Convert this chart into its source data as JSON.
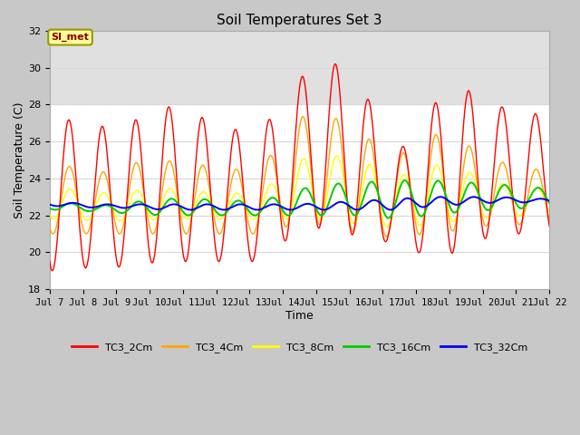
{
  "title": "Soil Temperatures Set 3",
  "xlabel": "Time",
  "ylabel": "Soil Temperature (C)",
  "ylim": [
    18,
    32
  ],
  "xlim_days": [
    7,
    22
  ],
  "annotation_text": "SI_met",
  "annotation_color": "#8B0000",
  "annotation_bg": "#FFFF99",
  "annotation_border": "#999900",
  "series_colors": {
    "TC3_2Cm": "#FF0000",
    "TC3_4Cm": "#FFA500",
    "TC3_8Cm": "#FFFF00",
    "TC3_16Cm": "#00CC00",
    "TC3_32Cm": "#0000EE"
  },
  "fig_bg": "#C8C8C8",
  "plot_bg": "#FFFFFF",
  "grid_color": "#D8D8D8",
  "shade_band_lo": 28,
  "shade_band_hi": 32,
  "shade_color": "#E0E0E0",
  "tick_labels": [
    "Jul 7",
    "Jul 8",
    "Jul 9",
    "Jul 10",
    "Jul 11",
    "Jul 12",
    "Jul 13",
    "Jul 14",
    "Jul 15",
    "Jul 16",
    "Jul 17",
    "Jul 18",
    "Jul 19",
    "Jul 20",
    "Jul 21",
    "Jul 22"
  ],
  "tick_positions": [
    7,
    8,
    9,
    10,
    11,
    12,
    13,
    14,
    15,
    16,
    17,
    18,
    19,
    20,
    21,
    22
  ],
  "yticks": [
    18,
    20,
    22,
    24,
    26,
    28,
    30,
    32
  ],
  "linewidth": 1.0
}
